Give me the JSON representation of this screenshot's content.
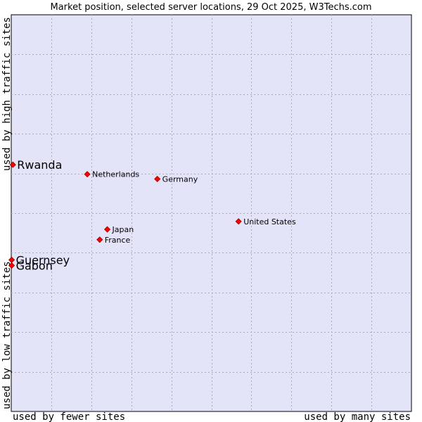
{
  "chart_data": {
    "type": "scatter",
    "title": "Market position, selected server locations, 29 Oct 2025, W3Techs.com",
    "xlabel_low": "used by fewer sites",
    "xlabel_high": "used by many sites",
    "ylabel_low": "used by low traffic sites",
    "ylabel_high": "used by high traffic sites",
    "xlim": [
      0,
      100
    ],
    "ylim": [
      0,
      100
    ],
    "grid": true,
    "colors": {
      "plot_bg": "#e4e4f8",
      "grid": "#a8a8c0",
      "point": "#ff0000",
      "point_edge": "#990000"
    },
    "points": [
      {
        "name": "Rwanda",
        "x": 0.4,
        "y": 62.2,
        "label_size": "large"
      },
      {
        "name": "Netherlands",
        "x": 19.0,
        "y": 59.8,
        "label_size": "small"
      },
      {
        "name": "Germany",
        "x": 36.5,
        "y": 58.6,
        "label_size": "small"
      },
      {
        "name": "United States",
        "x": 56.8,
        "y": 47.9,
        "label_size": "small"
      },
      {
        "name": "Japan",
        "x": 24.0,
        "y": 45.9,
        "label_size": "small"
      },
      {
        "name": "France",
        "x": 22.1,
        "y": 43.3,
        "label_size": "small"
      },
      {
        "name": "Guernsey",
        "x": 0.1,
        "y": 38.2,
        "label_size": "large"
      },
      {
        "name": "Gabon",
        "x": 0.1,
        "y": 36.8,
        "label_size": "large"
      }
    ]
  }
}
